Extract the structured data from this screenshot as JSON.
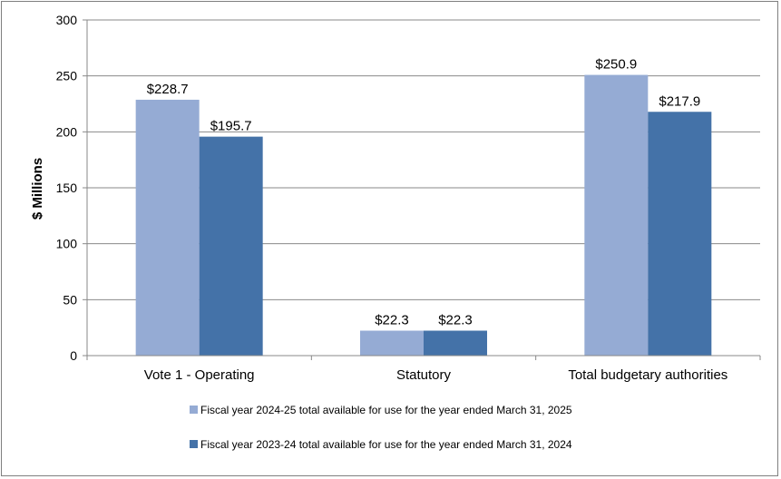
{
  "chart_data": {
    "type": "bar",
    "title": "",
    "xlabel": "",
    "ylabel": "$ Millions",
    "ylim": [
      0,
      300
    ],
    "yticks": [
      0,
      50,
      100,
      150,
      200,
      250,
      300
    ],
    "grid": true,
    "legend_position": "bottom",
    "categories": [
      "Vote 1 - Operating",
      "Statutory",
      "Total budgetary authorities"
    ],
    "series": [
      {
        "name": "Fiscal year 2024-25 total available for use for the year ended March 31, 2025",
        "color": "#95abd4",
        "values": [
          228.7,
          22.3,
          250.9
        ],
        "labels": [
          "$228.7",
          "$22.3",
          "$250.9"
        ]
      },
      {
        "name": "Fiscal year 2023-24 total available for use for the year ended March 31, 2024",
        "color": "#4472a8",
        "values": [
          195.7,
          22.3,
          217.9
        ],
        "labels": [
          "$195.7",
          "$22.3",
          "$217.9"
        ]
      }
    ]
  },
  "colors": {
    "grid": "#898989",
    "axis": "#898989"
  }
}
